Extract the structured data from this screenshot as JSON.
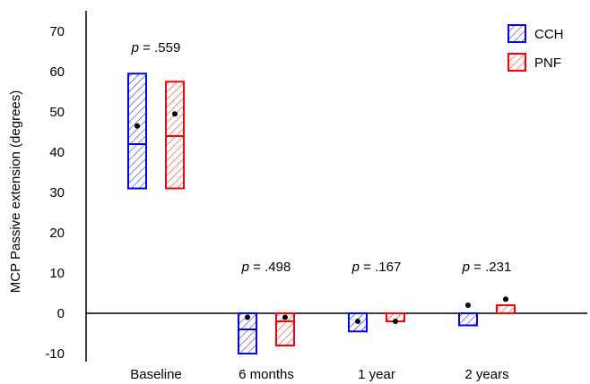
{
  "chart_data": {
    "type": "boxplot",
    "ylabel": "MCP Passive  extension (degrees)",
    "ylim": [
      -12,
      77
    ],
    "yticks": [
      -10,
      0,
      10,
      20,
      30,
      40,
      50,
      60,
      70
    ],
    "categories": [
      "Baseline",
      "6 months",
      "1 year",
      "2 years"
    ],
    "series": [
      {
        "name": "CCH",
        "color": "#0000ff",
        "hatch": "diagonal",
        "boxes": [
          {
            "q1": 31,
            "median": 42,
            "q3": 59.5,
            "mean": 46.5
          },
          {
            "q1": -10,
            "median": -4,
            "q3": 0,
            "mean": -1
          },
          {
            "q1": -4.5,
            "median": 0,
            "q3": 0,
            "mean": -2
          },
          {
            "q1": -3,
            "median": 0,
            "q3": 0,
            "mean": 2
          }
        ]
      },
      {
        "name": "PNF",
        "color": "#ff0000",
        "hatch": "diagonal",
        "boxes": [
          {
            "q1": 31,
            "median": 44,
            "q3": 57.5,
            "mean": 49.5
          },
          {
            "q1": -8,
            "median": -2,
            "q3": 0,
            "mean": -1
          },
          {
            "q1": -2,
            "median": 0,
            "q3": 0,
            "mean": -2
          },
          {
            "q1": 0,
            "median": 0,
            "q3": 2,
            "mean": 3.5
          }
        ]
      }
    ],
    "annotations": [
      {
        "category": "Baseline",
        "prefix": "p",
        "value": " = .559"
      },
      {
        "category": "6 months",
        "prefix": "p",
        "value": " = .498"
      },
      {
        "category": "1 year",
        "prefix": "p",
        "value": " = .167"
      },
      {
        "category": "2 years",
        "prefix": "p",
        "value": " = .231"
      }
    ],
    "legend": {
      "position": "top-right",
      "entries": [
        "CCH",
        "PNF"
      ]
    },
    "grid": false
  }
}
